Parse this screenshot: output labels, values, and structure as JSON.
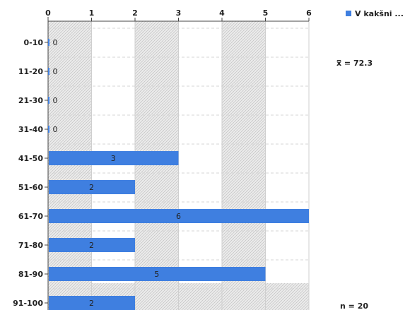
{
  "chart_data": {
    "type": "bar",
    "orientation": "horizontal",
    "categories": [
      "0-10",
      "11-20",
      "21-30",
      "31-40",
      "41-50",
      "51-60",
      "61-70",
      "71-80",
      "81-90",
      "91-100"
    ],
    "series": [
      {
        "name": "V kakšni ...",
        "values": [
          0,
          0,
          0,
          0,
          3,
          2,
          6,
          2,
          5,
          2
        ]
      }
    ],
    "xlim": [
      0,
      6
    ],
    "x_ticks": [
      "0",
      "1",
      "2",
      "3",
      "4",
      "5",
      "6"
    ],
    "grid": true,
    "legend_position": "top-right",
    "bar_color": "#3f7fe0"
  },
  "stats": {
    "mean": "x̅ = 72.3",
    "n": "n = 20"
  }
}
